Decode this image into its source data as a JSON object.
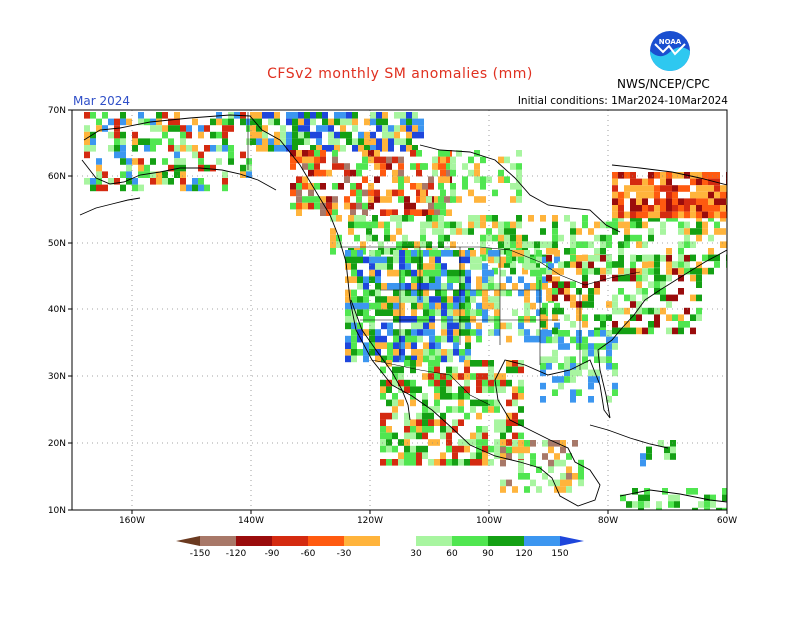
{
  "title": "CFSv2 monthly SM anomalies (mm)",
  "month": "Mar 2024",
  "initial_conditions": "Initial conditions: 1Mar2024-10Mar2024",
  "agency": "NWS/NCEP/CPC",
  "logo_text": "NOAA",
  "lat_labels": [
    "70N",
    "60N",
    "50N",
    "40N",
    "30N",
    "20N",
    "10N"
  ],
  "lon_labels": [
    "160W",
    "140W",
    "120W",
    "100W",
    "80W",
    "60W"
  ],
  "legend": {
    "labels": [
      "-150",
      "-120",
      "-90",
      "-60",
      "-30",
      "30",
      "60",
      "90",
      "120",
      "150"
    ],
    "colors": [
      "#6b3a20",
      "#a87868",
      "#9a0c0c",
      "#d42a10",
      "#ff5a10",
      "#ffb43c",
      "#ffffff",
      "#a8f5a0",
      "#50e650",
      "#14a014",
      "#3c96f0",
      "#1e46dc"
    ]
  },
  "colors": {
    "title": "#e03020",
    "month": "#3050c8",
    "coast": "#000000",
    "grid": "#888888"
  }
}
